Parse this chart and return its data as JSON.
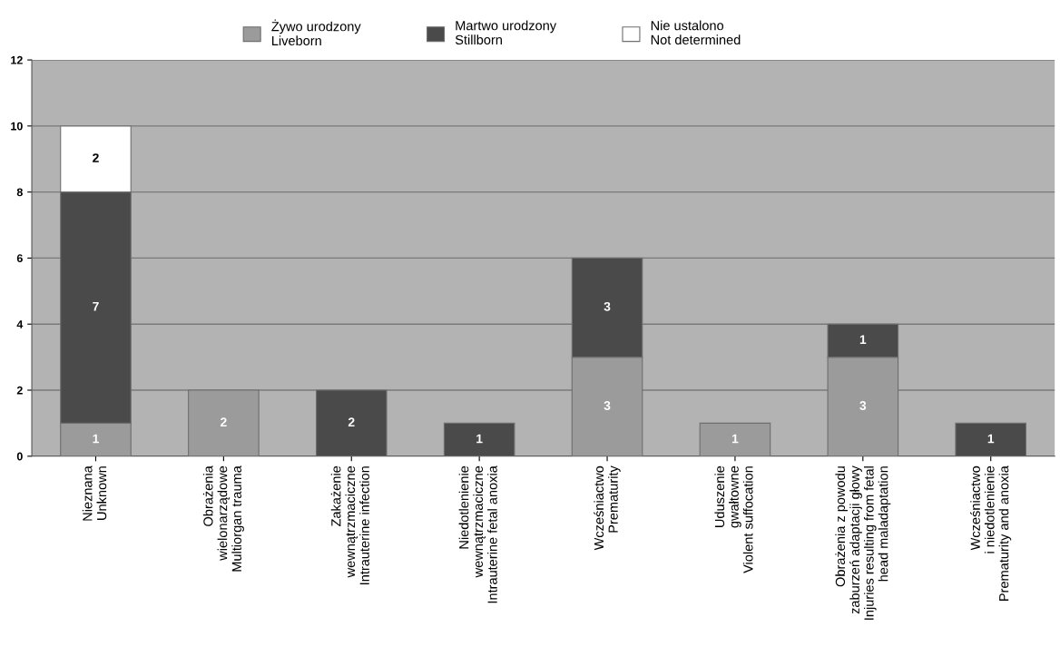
{
  "chart_data": {
    "type": "bar",
    "stacked": true,
    "categories": [
      "Nieznana\nUnknown",
      "Obrażenia\nwielonarządowe\nMultiorgan trauma",
      "Zakażenie\nwewnątrzmaciczne\nIntrauterine infection",
      "Niedotlenienie\nwewnątrzmaciczne\nIntrauterine fetal anoxia",
      "Wcześniactwo\nPrematurity",
      "Uduszenie\ngwałtowne\nViolent suffocation",
      "Obrażenia z powodu\nzaburzeń adaptacji głowy\nInjuries resulting from fetal\nhead maladaptation",
      "Wcześniactwo\ni niedotlenienie\nPrematurity and anoxia"
    ],
    "series": [
      {
        "name": "Żywo urodzony\nLiveborn",
        "color": "#9b9b9b",
        "values": [
          1,
          2,
          0,
          0,
          3,
          1,
          3,
          0
        ],
        "value_labels": [
          "1",
          "2",
          null,
          null,
          "3",
          "1",
          "3",
          null
        ]
      },
      {
        "name": "Martwo urodzony\nStillborn",
        "color": "#4a4a4a",
        "values": [
          7,
          0,
          2,
          1,
          3,
          0,
          1,
          1
        ],
        "value_labels": [
          "7",
          null,
          "2",
          "1",
          "3",
          null,
          "1",
          "1"
        ]
      },
      {
        "name": "Nie ustalono\nNot determined",
        "color": "#ffffff",
        "values": [
          2,
          0,
          0,
          0,
          0,
          0,
          0,
          0
        ],
        "value_labels": [
          "2",
          null,
          null,
          null,
          null,
          null,
          null,
          null
        ]
      }
    ],
    "ylim": [
      0,
      12
    ],
    "yticks": [
      0,
      2,
      4,
      6,
      8,
      10,
      12
    ],
    "grid": "y",
    "legend": "top"
  }
}
